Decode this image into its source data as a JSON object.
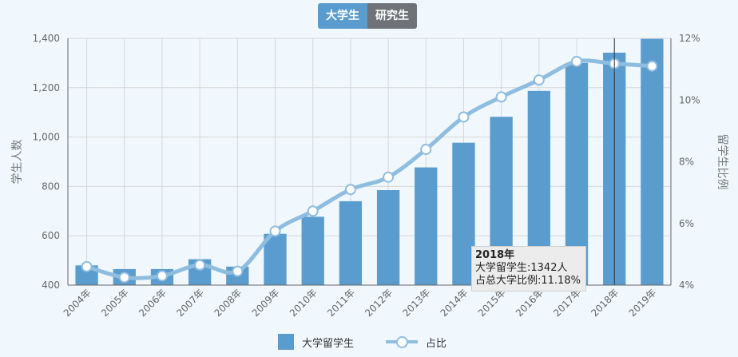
{
  "toggle": {
    "undergrad_label": "大学生",
    "grad_label": "研究生"
  },
  "tooltip": {
    "title": "2018年",
    "line1": "大学留学生:1342人",
    "line2": "占总大学比例:11.18%"
  },
  "legend": {
    "bars_label": "大学留学生",
    "line_label": "占比"
  },
  "colors": {
    "bar": "#5a9ccd",
    "line": "#8fbde0",
    "button_active": "#5a9ccd",
    "button_inactive": "#6f7378"
  },
  "chart_data": {
    "type": "bar",
    "categories": [
      "2004年",
      "2005年",
      "2006年",
      "2007年",
      "2008年",
      "2009年",
      "2010年",
      "2011年",
      "2012年",
      "2013年",
      "2014年",
      "2015年",
      "2016年",
      "2017年",
      "2018年",
      "2019年"
    ],
    "series": [
      {
        "name": "大学留学生",
        "type": "bar",
        "axis": "left",
        "values": [
          480,
          465,
          465,
          505,
          475,
          608,
          677,
          740,
          785,
          877,
          977,
          1082,
          1187,
          1300,
          1342,
          1398
        ]
      },
      {
        "name": "占比",
        "type": "line",
        "axis": "right",
        "values": [
          4.6,
          4.25,
          4.3,
          4.65,
          4.45,
          5.75,
          6.4,
          7.1,
          7.5,
          8.4,
          9.45,
          10.1,
          10.65,
          11.25,
          11.18,
          11.1
        ]
      }
    ],
    "ylabel_left": "学生人数",
    "ylabel_right": "留学生比例",
    "ylim_left": [
      400,
      1400
    ],
    "yticks_left": [
      "400",
      "600",
      "800",
      "1,000",
      "1,200",
      "1,400"
    ],
    "ylim_right": [
      4,
      12
    ],
    "yticks_right": [
      "4%",
      "6%",
      "8%",
      "10%",
      "12%"
    ],
    "highlighted_category": "2018年",
    "grid": true,
    "legend_position": "bottom"
  }
}
